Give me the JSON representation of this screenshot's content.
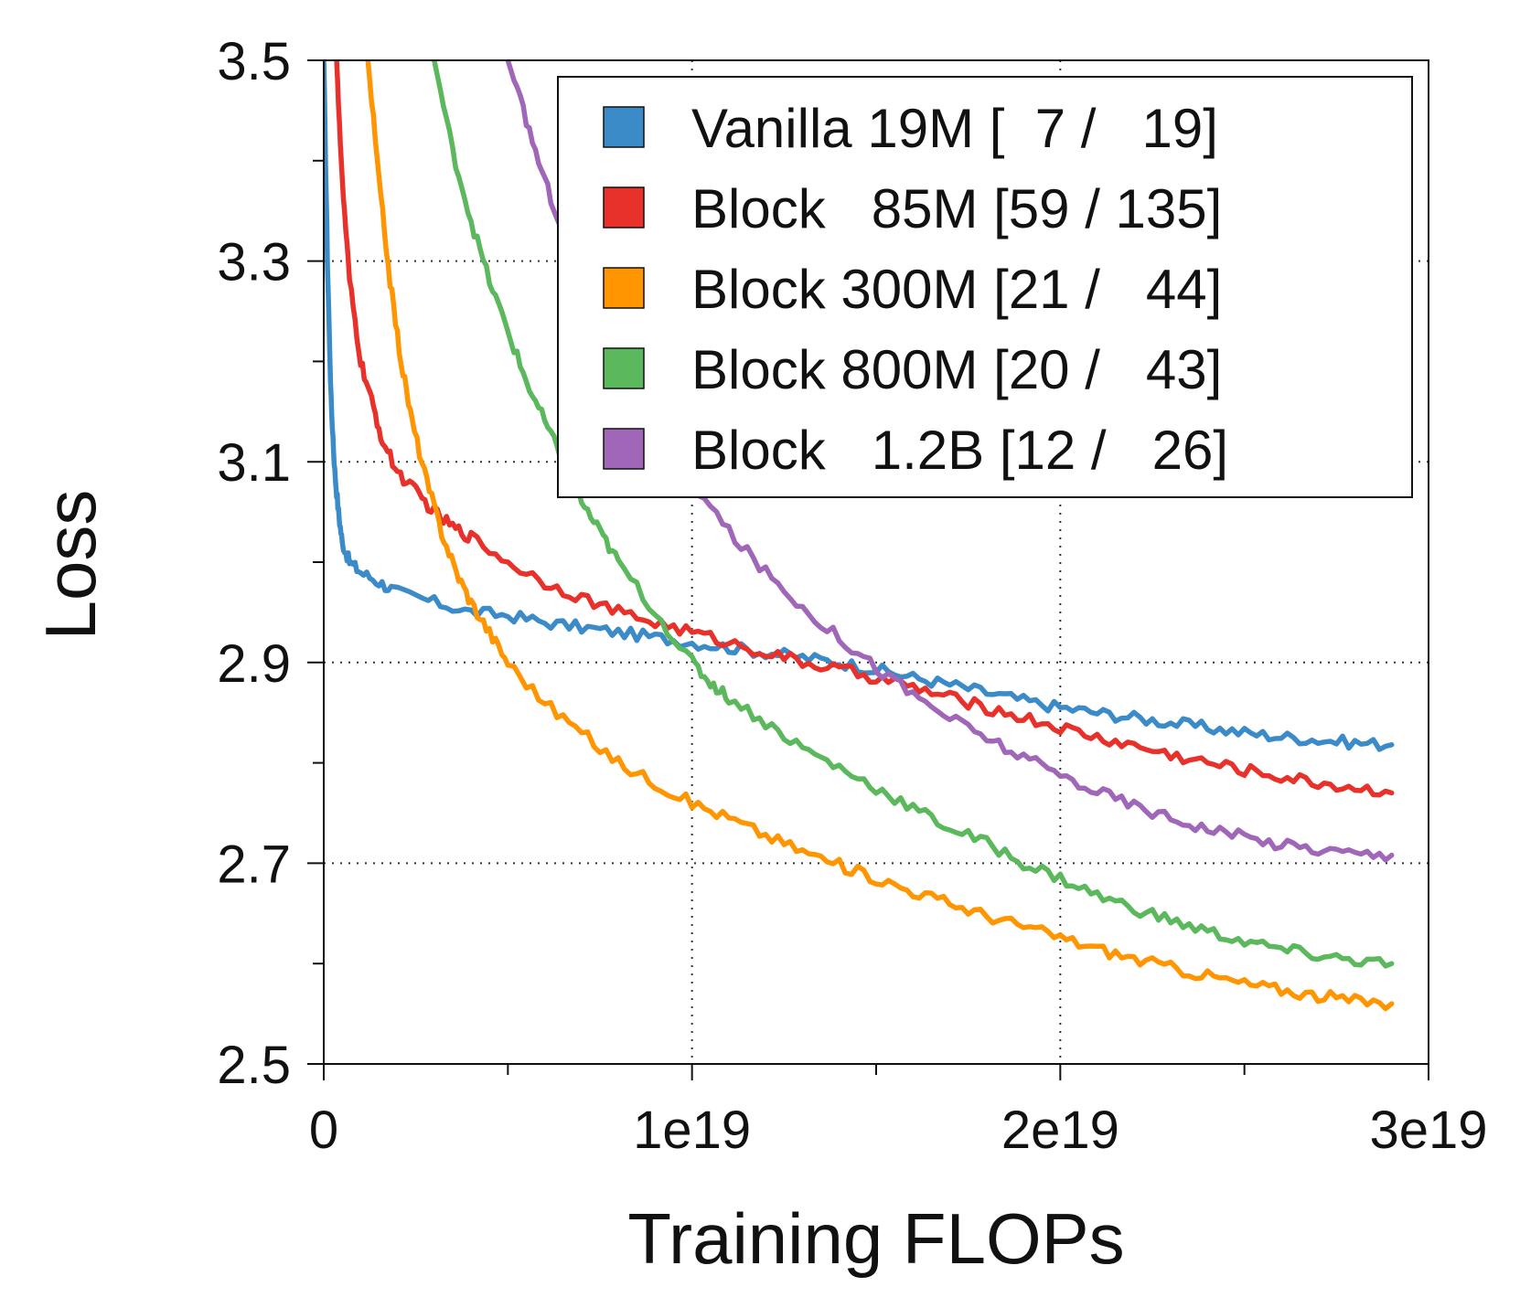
{
  "chart_data": {
    "type": "line",
    "title": "",
    "xlabel": "Training FLOPs",
    "ylabel": "Loss",
    "xlim": [
      0,
      3e+19
    ],
    "ylim": [
      2.5,
      3.5
    ],
    "x_tick_values": [
      0,
      1e+19,
      2e+19,
      3e+19
    ],
    "x_tick_labels": [
      "0",
      "1e19",
      "2e19",
      "3e19"
    ],
    "x_minor_tick_values": [
      5e+18,
      1.5e+19,
      2.5e+19
    ],
    "y_tick_values": [
      2.5,
      2.7,
      2.9,
      3.1,
      3.3,
      3.5
    ],
    "y_tick_labels": [
      "2.5",
      "2.7",
      "2.9",
      "3.1",
      "3.3",
      "3.5"
    ],
    "y_minor_tick_values": [
      2.6,
      2.8,
      3.0,
      3.2,
      3.4
    ],
    "grid_x_values": [
      1e+19,
      2e+19
    ],
    "grid_y_values": [
      2.7,
      2.9,
      3.1,
      3.3
    ],
    "grid": "dotted",
    "legend_position": "top-right",
    "series": [
      {
        "name": "Vanilla 19M [  7 /   19]",
        "color": "#3a8bc8",
        "points": [
          [
            0,
            3.5
          ],
          [
            1e+17,
            3.3
          ],
          [
            2e+17,
            3.16
          ],
          [
            3e+17,
            3.09
          ],
          [
            4e+17,
            3.05
          ],
          [
            5e+17,
            3.02
          ],
          [
            7e+17,
            3.0
          ],
          [
            1e+18,
            2.99
          ],
          [
            1.5e+18,
            2.98
          ],
          [
            2e+18,
            2.97
          ],
          [
            3e+18,
            2.96
          ],
          [
            4e+18,
            2.95
          ],
          [
            5e+18,
            2.947
          ],
          [
            6e+18,
            2.94
          ],
          [
            7e+18,
            2.935
          ],
          [
            8e+18,
            2.93
          ],
          [
            9e+18,
            2.925
          ],
          [
            1e+19,
            2.92
          ],
          [
            1.1e+19,
            2.915
          ],
          [
            1.2e+19,
            2.91
          ],
          [
            1.3e+19,
            2.905
          ],
          [
            1.4e+19,
            2.9
          ],
          [
            1.5e+19,
            2.893
          ],
          [
            1.6e+19,
            2.885
          ],
          [
            1.7e+19,
            2.878
          ],
          [
            1.8e+19,
            2.87
          ],
          [
            1.9e+19,
            2.862
          ],
          [
            2e+19,
            2.855
          ],
          [
            2.1e+19,
            2.85
          ],
          [
            2.2e+19,
            2.845
          ],
          [
            2.3e+19,
            2.84
          ],
          [
            2.4e+19,
            2.835
          ],
          [
            2.5e+19,
            2.83
          ],
          [
            2.6e+19,
            2.826
          ],
          [
            2.7e+19,
            2.823
          ],
          [
            2.8e+19,
            2.82
          ],
          [
            2.9e+19,
            2.818
          ]
        ]
      },
      {
        "name": "Block   85M [59 / 135]",
        "color": "#e8312a",
        "points": [
          [
            3.5e+17,
            3.5
          ],
          [
            5e+17,
            3.38
          ],
          [
            7e+17,
            3.28
          ],
          [
            1e+18,
            3.2
          ],
          [
            1.3e+18,
            3.16
          ],
          [
            1.6e+18,
            3.12
          ],
          [
            2e+18,
            3.09
          ],
          [
            2.5e+18,
            3.07
          ],
          [
            3e+18,
            3.05
          ],
          [
            3.5e+18,
            3.035
          ],
          [
            4e+18,
            3.025
          ],
          [
            5e+18,
            3.0
          ],
          [
            6e+18,
            2.98
          ],
          [
            7e+18,
            2.965
          ],
          [
            8e+18,
            2.95
          ],
          [
            9e+18,
            2.94
          ],
          [
            1e+19,
            2.93
          ],
          [
            1.1e+19,
            2.92
          ],
          [
            1.2e+19,
            2.91
          ],
          [
            1.3e+19,
            2.9
          ],
          [
            1.4e+19,
            2.893
          ],
          [
            1.5e+19,
            2.885
          ],
          [
            1.6e+19,
            2.875
          ],
          [
            1.7e+19,
            2.865
          ],
          [
            1.8e+19,
            2.855
          ],
          [
            1.9e+19,
            2.845
          ],
          [
            2e+19,
            2.835
          ],
          [
            2.1e+19,
            2.825
          ],
          [
            2.2e+19,
            2.817
          ],
          [
            2.3e+19,
            2.808
          ],
          [
            2.4e+19,
            2.8
          ],
          [
            2.5e+19,
            2.793
          ],
          [
            2.6e+19,
            2.786
          ],
          [
            2.7e+19,
            2.78
          ],
          [
            2.8e+19,
            2.775
          ],
          [
            2.9e+19,
            2.77
          ]
        ]
      },
      {
        "name": "Block 300M [21 /   44]",
        "color": "#ff9500",
        "points": [
          [
            1.2e+18,
            3.5
          ],
          [
            1.5e+18,
            3.38
          ],
          [
            1.8e+18,
            3.28
          ],
          [
            2.1e+18,
            3.2
          ],
          [
            2.4e+18,
            3.14
          ],
          [
            2.8e+18,
            3.08
          ],
          [
            3.2e+18,
            3.03
          ],
          [
            3.6e+18,
            2.99
          ],
          [
            4e+18,
            2.96
          ],
          [
            4.5e+18,
            2.93
          ],
          [
            5e+18,
            2.9
          ],
          [
            6e+18,
            2.86
          ],
          [
            7e+18,
            2.83
          ],
          [
            8e+18,
            2.8
          ],
          [
            9e+18,
            2.78
          ],
          [
            1e+19,
            2.76
          ],
          [
            1.1e+19,
            2.745
          ],
          [
            1.2e+19,
            2.728
          ],
          [
            1.3e+19,
            2.712
          ],
          [
            1.4e+19,
            2.698
          ],
          [
            1.5e+19,
            2.685
          ],
          [
            1.6e+19,
            2.672
          ],
          [
            1.7e+19,
            2.66
          ],
          [
            1.8e+19,
            2.648
          ],
          [
            1.9e+19,
            2.637
          ],
          [
            2e+19,
            2.626
          ],
          [
            2.1e+19,
            2.615
          ],
          [
            2.2e+19,
            2.605
          ],
          [
            2.3e+19,
            2.596
          ],
          [
            2.4e+19,
            2.588
          ],
          [
            2.5e+19,
            2.58
          ],
          [
            2.6e+19,
            2.574
          ],
          [
            2.7e+19,
            2.568
          ],
          [
            2.8e+19,
            2.563
          ],
          [
            2.9e+19,
            2.56
          ]
        ]
      },
      {
        "name": "Block 800M [20 /   43]",
        "color": "#5cb85c",
        "points": [
          [
            3e+18,
            3.5
          ],
          [
            3.5e+18,
            3.41
          ],
          [
            4e+18,
            3.34
          ],
          [
            4.5e+18,
            3.28
          ],
          [
            5e+18,
            3.23
          ],
          [
            5.5e+18,
            3.18
          ],
          [
            6e+18,
            3.14
          ],
          [
            6.5e+18,
            3.1
          ],
          [
            7e+18,
            3.06
          ],
          [
            7.5e+18,
            3.03
          ],
          [
            8e+18,
            3.0
          ],
          [
            9e+18,
            2.95
          ],
          [
            1e+19,
            2.9
          ],
          [
            1.05e+19,
            2.88
          ],
          [
            1.1e+19,
            2.865
          ],
          [
            1.2e+19,
            2.84
          ],
          [
            1.3e+19,
            2.815
          ],
          [
            1.4e+19,
            2.795
          ],
          [
            1.5e+19,
            2.775
          ],
          [
            1.6e+19,
            2.755
          ],
          [
            1.7e+19,
            2.735
          ],
          [
            1.8e+19,
            2.72
          ],
          [
            1.9e+19,
            2.7
          ],
          [
            2e+19,
            2.685
          ],
          [
            2.1e+19,
            2.668
          ],
          [
            2.2e+19,
            2.655
          ],
          [
            2.3e+19,
            2.643
          ],
          [
            2.4e+19,
            2.632
          ],
          [
            2.5e+19,
            2.622
          ],
          [
            2.6e+19,
            2.614
          ],
          [
            2.7e+19,
            2.608
          ],
          [
            2.8e+19,
            2.603
          ],
          [
            2.9e+19,
            2.6
          ]
        ]
      },
      {
        "name": "Block   1.2B [12 /   26]",
        "color": "#a066b8",
        "points": [
          [
            5e+18,
            3.5
          ],
          [
            5.5e+18,
            3.44
          ],
          [
            6e+18,
            3.38
          ],
          [
            6.5e+18,
            3.33
          ],
          [
            7e+18,
            3.29
          ],
          [
            7.5e+18,
            3.25
          ],
          [
            8e+18,
            3.21
          ],
          [
            8.5e+18,
            3.175
          ],
          [
            9e+18,
            3.14
          ],
          [
            9.5e+18,
            3.11
          ],
          [
            1e+19,
            3.08
          ],
          [
            1.1e+19,
            3.03
          ],
          [
            1.2e+19,
            2.99
          ],
          [
            1.3e+19,
            2.955
          ],
          [
            1.4e+19,
            2.925
          ],
          [
            1.5e+19,
            2.895
          ],
          [
            1.6e+19,
            2.868
          ],
          [
            1.7e+19,
            2.845
          ],
          [
            1.8e+19,
            2.825
          ],
          [
            1.9e+19,
            2.805
          ],
          [
            2e+19,
            2.788
          ],
          [
            2.1e+19,
            2.772
          ],
          [
            2.2e+19,
            2.758
          ],
          [
            2.3e+19,
            2.745
          ],
          [
            2.4e+19,
            2.735
          ],
          [
            2.5e+19,
            2.726
          ],
          [
            2.6e+19,
            2.719
          ],
          [
            2.7e+19,
            2.714
          ],
          [
            2.8e+19,
            2.71
          ],
          [
            2.9e+19,
            2.708
          ]
        ]
      }
    ]
  }
}
